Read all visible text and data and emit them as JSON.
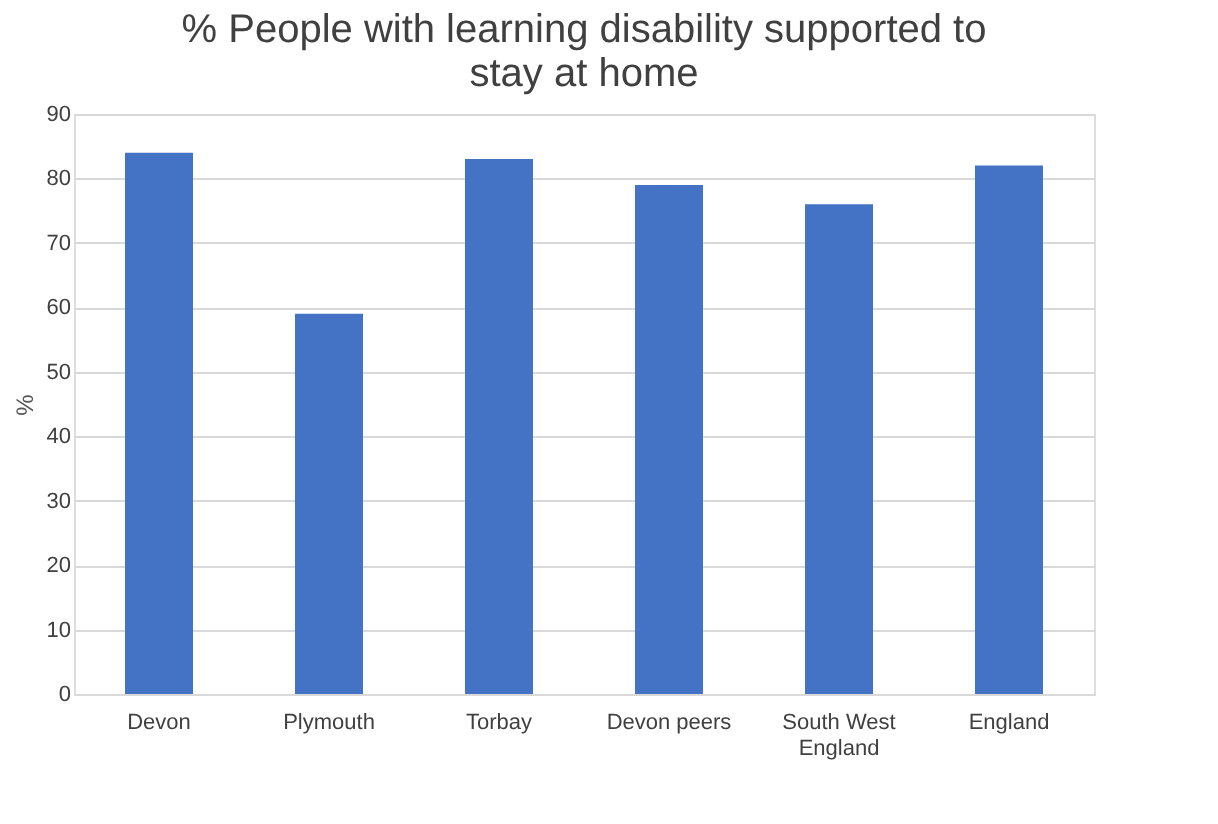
{
  "chart_data": {
    "type": "bar",
    "title": "% People with learning disability supported to stay at home",
    "categories": [
      "Devon",
      "Plymouth",
      "Torbay",
      "Devon peers",
      "South West England",
      "England"
    ],
    "values": [
      84,
      59,
      83,
      79,
      76,
      82
    ],
    "color": "#4472c4",
    "ylabel": "%",
    "ylim": [
      0,
      90
    ],
    "yticks": [
      0,
      10,
      20,
      30,
      40,
      50,
      60,
      70,
      80,
      90
    ],
    "grid": "y"
  }
}
